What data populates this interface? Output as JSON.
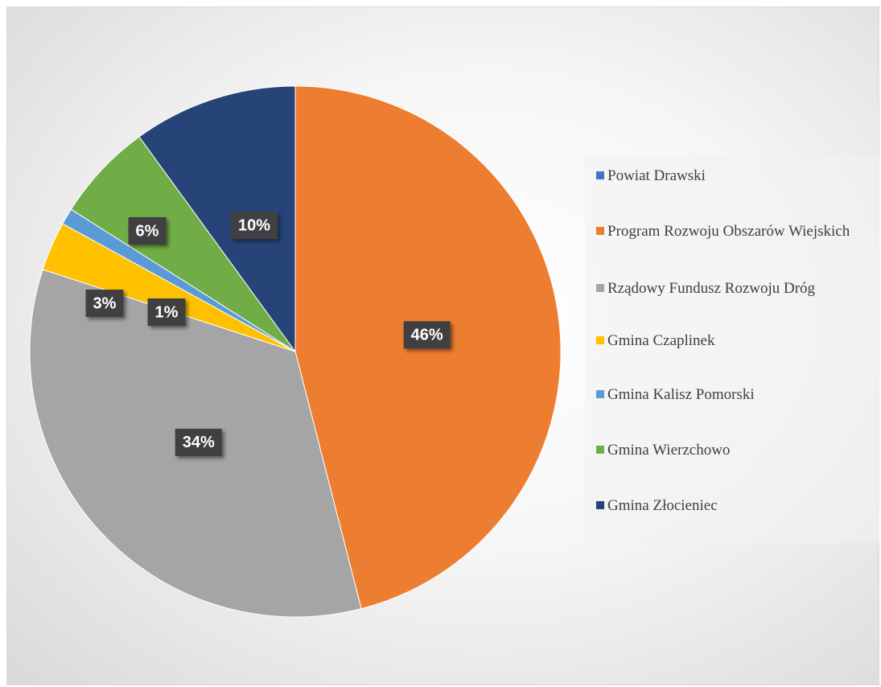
{
  "chart_data": {
    "type": "pie",
    "categories": [
      "Powiat Drawski",
      "Program Rozwoju Obszarów Wiejskich",
      "Rządowy Fundusz Rozwoju Dróg",
      "Gmina Czaplinek",
      "Gmina Kalisz Pomorski",
      "Gmina Wierzchowo",
      "Gmina Złocieniec"
    ],
    "values": [
      0,
      46,
      34,
      3,
      1,
      6,
      10
    ],
    "value_labels": [
      null,
      "46%",
      "34%",
      "3%",
      "1%",
      "6%",
      "10%"
    ],
    "colors": [
      "#4472C4",
      "#ED7D31",
      "#A5A5A5",
      "#FFC000",
      "#5B9BD5",
      "#70AD47",
      "#264478"
    ],
    "legend": "right"
  }
}
